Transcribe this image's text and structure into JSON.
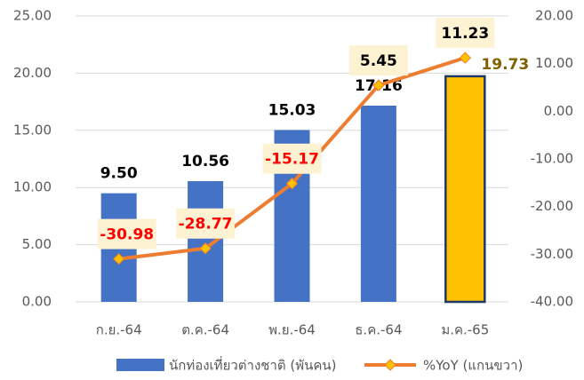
{
  "chart_data": {
    "type": "bar_line",
    "categories": [
      "ก.ย.-64",
      "ต.ค.-64",
      "พ.ย.-64",
      "ธ.ค.-64",
      "ม.ค.-65"
    ],
    "series": [
      {
        "name": "นักท่องเที่ยวต่างชาติ (พันคน)",
        "color": "#4472c4",
        "colors": [
          "#4472c4",
          "#4472c4",
          "#4472c4",
          "#4472c4",
          "#ffc000"
        ],
        "values": [
          9.5,
          10.56,
          15.03,
          17.16,
          19.73
        ],
        "value_labels": [
          "9.50",
          "10.56",
          "15.03",
          "17.16",
          "19.73"
        ]
      },
      {
        "name": "%YoY (แกนขวา)",
        "color": "#ed7d31",
        "marker_color": "#ffc000",
        "axis": "y2",
        "values": [
          -30.98,
          -28.77,
          -15.17,
          5.45,
          11.23
        ],
        "value_labels": [
          "-30.98",
          "-28.77",
          "-15.17",
          "5.45",
          "11.23"
        ]
      }
    ],
    "ylim": [
      0,
      25
    ],
    "yticks": [
      {
        "value": 0,
        "label": "0.00"
      },
      {
        "value": 5,
        "label": "5.00"
      },
      {
        "value": 10,
        "label": "10.00"
      },
      {
        "value": 15,
        "label": "15.00"
      },
      {
        "value": 20,
        "label": "20.00"
      },
      {
        "value": 25,
        "label": "25.00"
      }
    ],
    "y2lim": [
      -40,
      20
    ],
    "y2ticks": [
      {
        "value": -40,
        "label": "-40.00"
      },
      {
        "value": -30,
        "label": "-30.00"
      },
      {
        "value": -20,
        "label": "-20.00"
      },
      {
        "value": -10,
        "label": "-10.00"
      },
      {
        "value": 0,
        "label": "0.00"
      },
      {
        "value": 10,
        "label": "10.00"
      },
      {
        "value": 20,
        "label": "20.00"
      }
    ],
    "grid": true,
    "legend": "bottom"
  }
}
